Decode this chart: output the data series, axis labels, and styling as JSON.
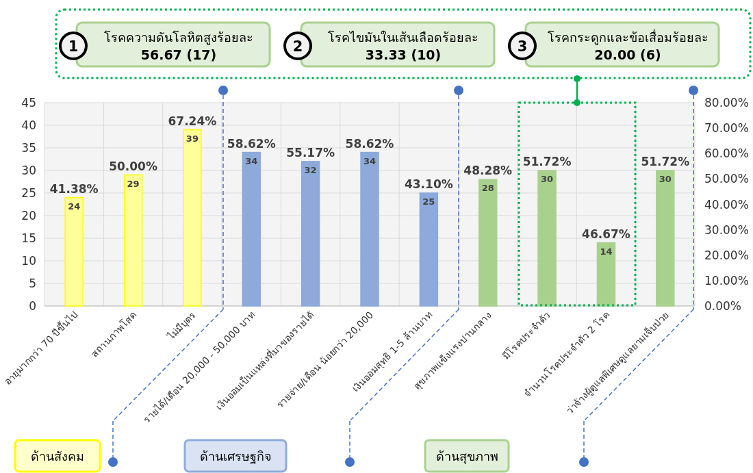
{
  "chart_data": {
    "type": "bar",
    "categories": [
      "อายุมากกว่า 70 ปีขึ้นไป",
      "สถานภาพโสด",
      "ไม่มีบุตร",
      "รายได้/เดือน 20,000 - 50,000 บาท",
      "เงินออมเป็นแหล่งที่มาของรายได้",
      "รายจ่าย/เดือน น้อยกว่า 20,000",
      "เงินออมสุทธิ 1-5 ล้านบาท",
      "สุขภาพแข็งแรงปานกลาง",
      "มีโรคประจำตัว",
      "จำนวนโรคประจำตัว 2 โรค",
      "ว่าจ้างผู้ดูแลพิเศษดูแลยามเจ็บป่วย"
    ],
    "values": [
      24,
      29,
      39,
      34,
      32,
      34,
      25,
      28,
      30,
      14,
      30
    ],
    "colors": [
      "#ffff99",
      "#ffff99",
      "#ffff99",
      "#8eaadb",
      "#8eaadb",
      "#8eaadb",
      "#8eaadb",
      "#a9d18e",
      "#a9d18e",
      "#a9d18e",
      "#a9d18e"
    ],
    "data_labels": true,
    "ylim": [
      0,
      45
    ],
    "yticks": [
      0,
      5,
      10,
      15,
      20,
      25,
      30,
      35,
      40,
      45
    ],
    "y2lim": [
      0,
      80
    ],
    "y2ticks": [
      {
        "value": 0,
        "label": "0.00%"
      },
      {
        "value": 10,
        "label": "10.00%"
      },
      {
        "value": 20,
        "label": "20.00%"
      },
      {
        "value": 30,
        "label": "30.00%"
      },
      {
        "value": 40,
        "label": "40.00%"
      },
      {
        "value": 50,
        "label": "50.00%"
      },
      {
        "value": 60,
        "label": "60.00%"
      },
      {
        "value": 70,
        "label": "70.00%"
      },
      {
        "value": 80,
        "label": "80.00%"
      }
    ],
    "grid": true,
    "annotations": [
      {
        "text": "41.38%",
        "x": "อายุมากกว่า 70 ปีขึ้นไป",
        "y": 24
      },
      {
        "text": "50.00%",
        "x": "สถานภาพโสด",
        "y": 29
      },
      {
        "text": "67.24%",
        "x": "ไม่มีบุตร",
        "y": 39
      },
      {
        "text": "58.62%",
        "x": "รายได้/เดือน 20,000 - 50,000 บาท",
        "y": 34
      },
      {
        "text": "55.17%",
        "x": "เงินออมเป็นแหล่งที่มาของรายได้",
        "y": 32
      },
      {
        "text": "58.62%",
        "x": "รายจ่าย/เดือน น้อยกว่า 20,000",
        "y": 34
      },
      {
        "text": "43.10%",
        "x": "เงินออมสุทธิ 1-5 ล้านบาท",
        "y": 25
      },
      {
        "text": "48.28%",
        "x": "สุขภาพแข็งแรงปานกลาง",
        "y": 28
      },
      {
        "text": "51.72%",
        "x": "มีโรคประจำตัว",
        "y": 30
      },
      {
        "text": "46.67%",
        "x": "จำนวนโรคประจำตัว 2 โรค",
        "y": 14
      },
      {
        "text": "51.72%",
        "x": "ว่าจ้างผู้ดูแลพิเศษดูแลยามเจ็บป่วย",
        "y": 30
      },
      "1",
      "โรคความดันโลหิตสูงร้อยละ",
      "56.67 (17)",
      "2",
      "โรคไขมันในเส้นเลือดร้อยละ",
      "33.33 (10)",
      "3",
      "โรคกระดูกและข้อเสื่อมร้อยละ",
      "20.00 (6)",
      "ด้านสังคม",
      "ด้านเศรษฐกิจ",
      "ด้านสุขภาพ"
    ]
  }
}
